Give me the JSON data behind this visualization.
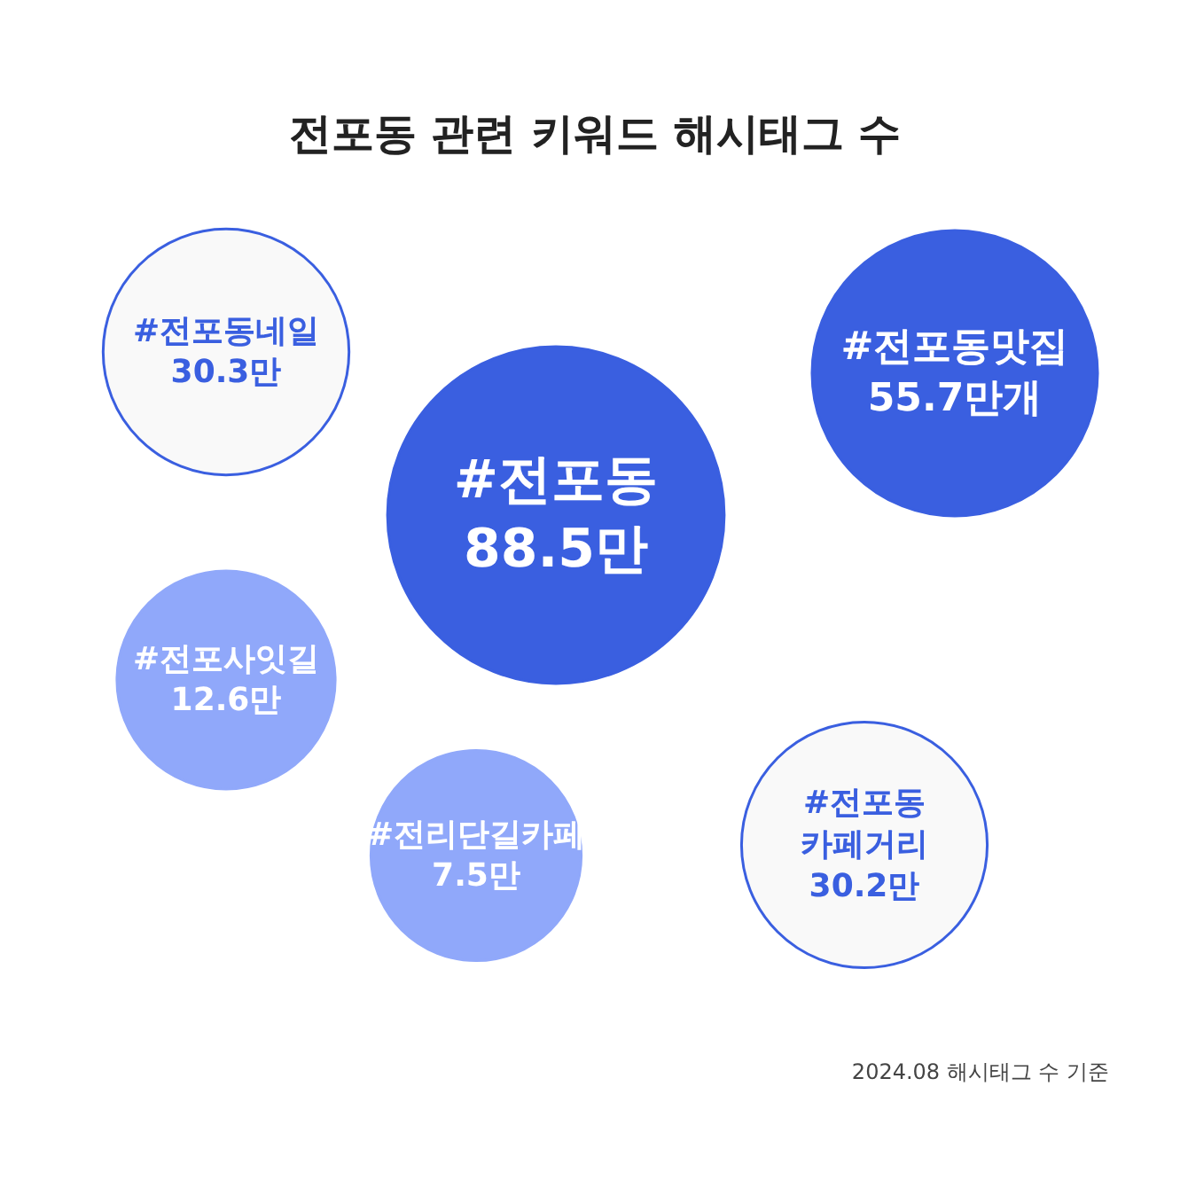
{
  "chart_data": {
    "type": "other",
    "title": "전포동 관련 키워드 해시태그 수",
    "categories": [
      "#전포동",
      "#전포동맛집",
      "#전포동네일",
      "#전포동 카페거리",
      "#전포사잇길",
      "#전리단길카페"
    ],
    "values": [
      88.5,
      55.7,
      30.3,
      30.2,
      12.6,
      7.5
    ],
    "value_labels": [
      "88.5만",
      "55.7만개",
      "30.3만",
      "30.2만",
      "12.6만",
      "7.5만"
    ],
    "colors": [
      "#3a5fe0",
      "#3a5fe0",
      "#f9f9f9",
      "#f9f9f9",
      "#90a8fa",
      "#90a8fa"
    ],
    "annotations": [
      "2024.08 해시태그 수 기준"
    ]
  }
}
